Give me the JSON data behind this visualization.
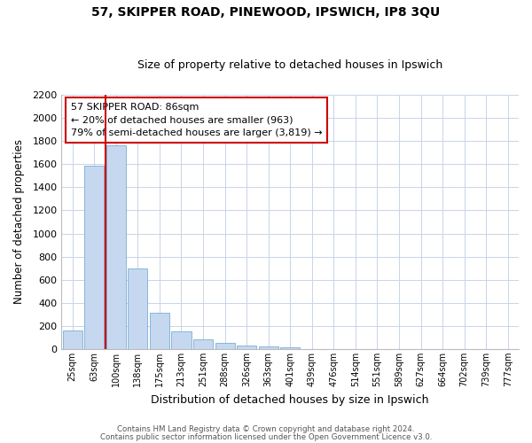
{
  "title": "57, SKIPPER ROAD, PINEWOOD, IPSWICH, IP8 3QU",
  "subtitle": "Size of property relative to detached houses in Ipswich",
  "xlabel": "Distribution of detached houses by size in Ipswich",
  "ylabel": "Number of detached properties",
  "bar_labels": [
    "25sqm",
    "63sqm",
    "100sqm",
    "138sqm",
    "175sqm",
    "213sqm",
    "251sqm",
    "288sqm",
    "326sqm",
    "363sqm",
    "401sqm",
    "439sqm",
    "476sqm",
    "514sqm",
    "551sqm",
    "589sqm",
    "627sqm",
    "664sqm",
    "702sqm",
    "739sqm",
    "777sqm"
  ],
  "bar_values": [
    160,
    1590,
    1760,
    700,
    315,
    155,
    85,
    50,
    30,
    20,
    15,
    0,
    0,
    0,
    0,
    0,
    0,
    0,
    0,
    0,
    0
  ],
  "bar_color": "#c5d8ef",
  "bar_edge_color": "#7aaed4",
  "vline_x": 1.5,
  "vline_color": "#cc0000",
  "ylim": [
    0,
    2200
  ],
  "yticks": [
    0,
    200,
    400,
    600,
    800,
    1000,
    1200,
    1400,
    1600,
    1800,
    2000,
    2200
  ],
  "annotation_text": "57 SKIPPER ROAD: 86sqm\n← 20% of detached houses are smaller (963)\n79% of semi-detached houses are larger (3,819) →",
  "annotation_box_color": "#ffffff",
  "annotation_box_edge": "#cc0000",
  "footer_line1": "Contains HM Land Registry data © Crown copyright and database right 2024.",
  "footer_line2": "Contains public sector information licensed under the Open Government Licence v3.0.",
  "background_color": "#ffffff",
  "grid_color": "#c8d4e8"
}
